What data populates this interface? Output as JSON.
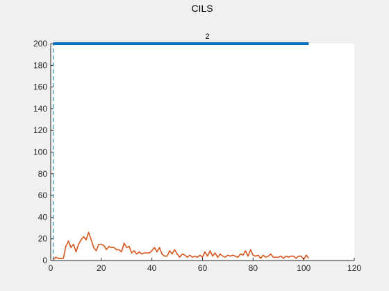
{
  "chart_data": {
    "type": "line",
    "title": "CILS",
    "xlabel": "",
    "ylabel": "",
    "xlim": [
      0,
      120
    ],
    "ylim": [
      0,
      200
    ],
    "xticks": [
      0,
      20,
      40,
      60,
      80,
      100,
      120
    ],
    "yticks": [
      0,
      20,
      40,
      60,
      80,
      100,
      120,
      140,
      160,
      180,
      200
    ],
    "grid": false,
    "legend": "none",
    "colors": {
      "axes_bg": "#ffffff",
      "figure_bg": "#f0f0f0",
      "series_blue": "#0072bd",
      "series_orange": "#d95319"
    },
    "annotations": [
      {
        "text": "2",
        "x": 60,
        "y": 200
      }
    ],
    "series": [
      {
        "style": "dashed",
        "color": "#0072bd",
        "x": [
          1,
          1
        ],
        "y": [
          0,
          200
        ]
      },
      {
        "style": "solid-thick",
        "color": "#0072bd",
        "x": [
          1,
          102
        ],
        "y": [
          200,
          200
        ]
      },
      {
        "style": "solid",
        "color": "#d95319",
        "x": [
          1,
          2,
          3,
          4,
          5,
          6,
          7,
          8,
          9,
          10,
          11,
          12,
          13,
          14,
          15,
          16,
          17,
          18,
          19,
          20,
          21,
          22,
          23,
          24,
          25,
          26,
          27,
          28,
          29,
          30,
          31,
          32,
          33,
          34,
          35,
          36,
          37,
          38,
          39,
          40,
          41,
          42,
          43,
          44,
          45,
          46,
          47,
          48,
          49,
          50,
          51,
          52,
          53,
          54,
          55,
          56,
          57,
          58,
          59,
          60,
          61,
          62,
          63,
          64,
          65,
          66,
          67,
          68,
          69,
          70,
          71,
          72,
          73,
          74,
          75,
          76,
          77,
          78,
          79,
          80,
          81,
          82,
          83,
          84,
          85,
          86,
          87,
          88,
          89,
          90,
          91,
          92,
          93,
          94,
          95,
          96,
          97,
          98,
          99,
          100,
          101,
          102
        ],
        "y": [
          1,
          3,
          2,
          2,
          2,
          13,
          18,
          12,
          15,
          8,
          15,
          19,
          22,
          19,
          26,
          19,
          12,
          9,
          15,
          15,
          14,
          10,
          13,
          12,
          12,
          10,
          10,
          8,
          16,
          12,
          13,
          7,
          9,
          6,
          8,
          6,
          7,
          7,
          7,
          9,
          12,
          8,
          12,
          6,
          4,
          4,
          9,
          6,
          10,
          6,
          3,
          6,
          5,
          3,
          5,
          3,
          4,
          3,
          5,
          3,
          8,
          4,
          9,
          4,
          7,
          3,
          6,
          4,
          3,
          5,
          4,
          5,
          4,
          3,
          6,
          5,
          9,
          4,
          10,
          5,
          4,
          5,
          2,
          5,
          3,
          4,
          6,
          3,
          3,
          3,
          4,
          2,
          4,
          3,
          4,
          4,
          2,
          4,
          4,
          1,
          5,
          2
        ]
      }
    ]
  }
}
